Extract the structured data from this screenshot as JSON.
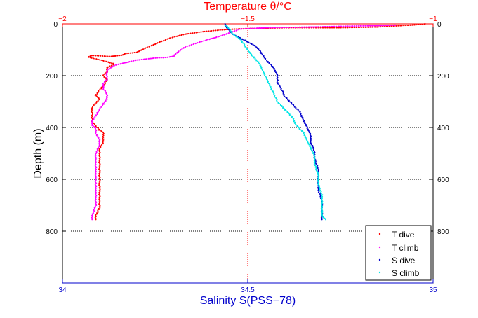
{
  "chart_data": {
    "type": "scatter",
    "title": "Temperature θ/°C",
    "ylabel": "Depth (m)",
    "xlabel": "Salinity S(PSS−78)",
    "y_axis": {
      "range": [
        0,
        1000
      ],
      "reversed": true,
      "ticks": [
        0,
        200,
        400,
        600,
        800
      ],
      "tick_labels": [
        "0",
        "200",
        "400",
        "600",
        "800"
      ]
    },
    "x_top_axis": {
      "range": [
        -2,
        -1
      ],
      "ticks": [
        -2,
        -1.5,
        -1
      ],
      "tick_labels": [
        "−2",
        "−1.5",
        "−1"
      ],
      "color": "#ff0000"
    },
    "x_bottom_axis": {
      "range": [
        34,
        35
      ],
      "ticks": [
        34,
        34.5,
        35
      ],
      "tick_labels": [
        "34",
        "34.5",
        "35"
      ],
      "color": "#0000cc"
    },
    "grid": {
      "on": true,
      "style": "dotted"
    },
    "legend": {
      "placement": "bottom-right",
      "entries": [
        "T dive",
        "T climb",
        "S dive",
        "S climb"
      ]
    },
    "series": [
      {
        "name": "T dive",
        "axis": "top",
        "color": "#ff0000",
        "points": [
          [
            -1.02,
            0
          ],
          [
            -1.05,
            4
          ],
          [
            -1.09,
            7
          ],
          [
            -1.15,
            12
          ],
          [
            -1.25,
            15
          ],
          [
            -1.4,
            15
          ],
          [
            -1.5,
            18
          ],
          [
            -1.56,
            22
          ],
          [
            -1.62,
            30
          ],
          [
            -1.67,
            40
          ],
          [
            -1.71,
            55
          ],
          [
            -1.74,
            72
          ],
          [
            -1.77,
            90
          ],
          [
            -1.8,
            110
          ],
          [
            -1.83,
            115
          ],
          [
            -1.84,
            121
          ],
          [
            -1.87,
            126
          ],
          [
            -1.92,
            122
          ],
          [
            -1.93,
            128
          ],
          [
            -1.92,
            132
          ],
          [
            -1.89,
            142
          ],
          [
            -1.86,
            155
          ],
          [
            -1.88,
            170
          ],
          [
            -1.88,
            186
          ],
          [
            -1.89,
            200
          ],
          [
            -1.88,
            216
          ],
          [
            -1.89,
            240
          ],
          [
            -1.9,
            255
          ],
          [
            -1.91,
            276
          ],
          [
            -1.9,
            290
          ],
          [
            -1.91,
            305
          ],
          [
            -1.92,
            325
          ],
          [
            -1.92,
            350
          ],
          [
            -1.92,
            376
          ],
          [
            -1.91,
            395
          ],
          [
            -1.9,
            410
          ],
          [
            -1.89,
            420
          ],
          [
            -1.89,
            445
          ],
          [
            -1.89,
            460
          ],
          [
            -1.9,
            480
          ],
          [
            -1.9,
            500
          ],
          [
            -1.9,
            530
          ],
          [
            -1.9,
            560
          ],
          [
            -1.9,
            600
          ],
          [
            -1.9,
            640
          ],
          [
            -1.9,
            680
          ],
          [
            -1.9,
            710
          ],
          [
            -1.91,
            740
          ],
          [
            -1.91,
            755
          ]
        ]
      },
      {
        "name": "T climb",
        "axis": "top",
        "color": "#ff00ff",
        "points": [
          [
            -1.1,
            5
          ],
          [
            -1.2,
            8
          ],
          [
            -1.32,
            12
          ],
          [
            -1.45,
            15
          ],
          [
            -1.52,
            20
          ],
          [
            -1.55,
            35
          ],
          [
            -1.58,
            50
          ],
          [
            -1.61,
            62
          ],
          [
            -1.64,
            75
          ],
          [
            -1.67,
            90
          ],
          [
            -1.69,
            110
          ],
          [
            -1.7,
            125
          ],
          [
            -1.72,
            130
          ],
          [
            -1.75,
            132
          ],
          [
            -1.8,
            140
          ],
          [
            -1.86,
            160
          ],
          [
            -1.88,
            180
          ],
          [
            -1.88,
            200
          ],
          [
            -1.88,
            215
          ],
          [
            -1.89,
            230
          ],
          [
            -1.89,
            250
          ],
          [
            -1.88,
            270
          ],
          [
            -1.88,
            290
          ],
          [
            -1.89,
            310
          ],
          [
            -1.9,
            330
          ],
          [
            -1.91,
            355
          ],
          [
            -1.92,
            375
          ],
          [
            -1.92,
            390
          ],
          [
            -1.91,
            405
          ],
          [
            -1.91,
            425
          ],
          [
            -1.9,
            445
          ],
          [
            -1.9,
            470
          ],
          [
            -1.91,
            500
          ],
          [
            -1.91,
            540
          ],
          [
            -1.91,
            580
          ],
          [
            -1.91,
            620
          ],
          [
            -1.91,
            660
          ],
          [
            -1.91,
            700
          ],
          [
            -1.92,
            740
          ],
          [
            -1.92,
            755
          ]
        ]
      },
      {
        "name": "S dive",
        "axis": "bottom",
        "color": "#0000cc",
        "points": [
          [
            34.44,
            0
          ],
          [
            34.44,
            10
          ],
          [
            34.45,
            25
          ],
          [
            34.46,
            40
          ],
          [
            34.48,
            55
          ],
          [
            34.5,
            70
          ],
          [
            34.52,
            85
          ],
          [
            34.53,
            100
          ],
          [
            34.54,
            120
          ],
          [
            34.55,
            140
          ],
          [
            34.57,
            170
          ],
          [
            34.58,
            200
          ],
          [
            34.58,
            225
          ],
          [
            34.59,
            250
          ],
          [
            34.6,
            280
          ],
          [
            34.62,
            310
          ],
          [
            34.64,
            340
          ],
          [
            34.65,
            370
          ],
          [
            34.66,
            400
          ],
          [
            34.67,
            430
          ],
          [
            34.67,
            460
          ],
          [
            34.68,
            490
          ],
          [
            34.68,
            520
          ],
          [
            34.69,
            560
          ],
          [
            34.69,
            600
          ],
          [
            34.69,
            640
          ],
          [
            34.7,
            680
          ],
          [
            34.7,
            720
          ],
          [
            34.7,
            755
          ]
        ]
      },
      {
        "name": "S climb",
        "axis": "bottom",
        "color": "#00e5e5",
        "points": [
          [
            34.44,
            5
          ],
          [
            34.45,
            20
          ],
          [
            34.46,
            40
          ],
          [
            34.48,
            60
          ],
          [
            34.49,
            80
          ],
          [
            34.5,
            100
          ],
          [
            34.51,
            120
          ],
          [
            34.53,
            150
          ],
          [
            34.54,
            180
          ],
          [
            34.55,
            210
          ],
          [
            34.56,
            240
          ],
          [
            34.57,
            270
          ],
          [
            34.58,
            300
          ],
          [
            34.6,
            330
          ],
          [
            34.62,
            360
          ],
          [
            34.63,
            390
          ],
          [
            34.65,
            420
          ],
          [
            34.66,
            450
          ],
          [
            34.67,
            480
          ],
          [
            34.68,
            510
          ],
          [
            34.68,
            540
          ],
          [
            34.69,
            580
          ],
          [
            34.69,
            620
          ],
          [
            34.7,
            660
          ],
          [
            34.7,
            700
          ],
          [
            34.7,
            740
          ],
          [
            34.71,
            755
          ]
        ]
      }
    ]
  },
  "colors": {
    "background": "#ffffff",
    "axes": "#000000",
    "temperature_axis": "#ff0000",
    "salinity_axis": "#0000cc"
  }
}
